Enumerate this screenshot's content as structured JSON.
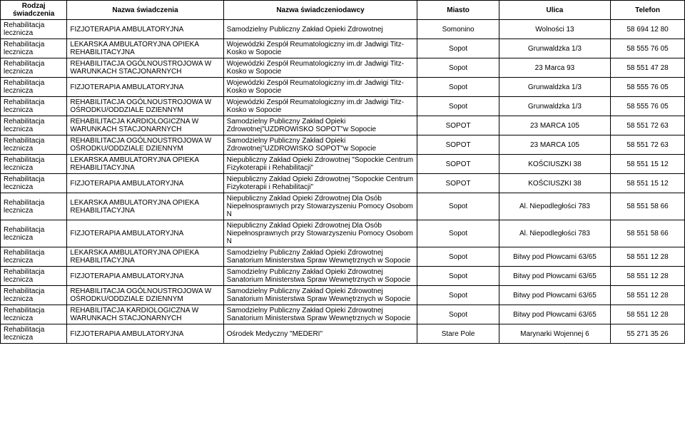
{
  "table": {
    "columns": [
      "Rodzaj świadczenia",
      "Nazwa świadczenia",
      "Nazwa świadczeniodawcy",
      "Miasto",
      "Ulica",
      "Telefon"
    ],
    "rows": [
      {
        "rodzaj": "Rehabilitacja lecznicza",
        "nazwa": "FIZJOTERAPIA AMBULATORYJNA",
        "dawca": "Samodzielny Publiczny Zakład Opieki Zdrowotnej",
        "miasto": "Somonino",
        "ulica": "Wolności 13",
        "tel": "58 694 12 80"
      },
      {
        "rodzaj": "Rehabilitacja lecznicza",
        "nazwa": "LEKARSKA AMBULATORYJNA OPIEKA REHABILITACYJNA",
        "dawca": "Wojewódzki Zespół Reumatologiczny im.dr Jadwigi Titz-Kosko w Sopocie",
        "miasto": "Sopot",
        "ulica": "Grunwaldzka 1/3",
        "tel": "58 555 76 05"
      },
      {
        "rodzaj": "Rehabilitacja lecznicza",
        "nazwa": "REHABILITACJA OGÓLNOUSTROJOWA W WARUNKACH STACJONARNYCH",
        "dawca": "Wojewódzki Zespół Reumatologiczny im.dr Jadwigi Titz-Kosko w Sopocie",
        "miasto": "Sopot",
        "ulica": "23 Marca 93",
        "tel": "58 551 47 28"
      },
      {
        "rodzaj": "Rehabilitacja lecznicza",
        "nazwa": "FIZJOTERAPIA AMBULATORYJNA",
        "dawca": "Wojewódzki Zespół Reumatologiczny im.dr Jadwigi Titz-Kosko w Sopocie",
        "miasto": "Sopot",
        "ulica": "Grunwaldzka 1/3",
        "tel": "58 555 76 05"
      },
      {
        "rodzaj": "Rehabilitacja lecznicza",
        "nazwa": "REHABILITACJA OGÓLNOUSTROJOWA W OŚRODKU/ODDZIALE DZIENNYM",
        "dawca": "Wojewódzki Zespół Reumatologiczny im.dr Jadwigi Titz-Kosko w Sopocie",
        "miasto": "Sopot",
        "ulica": "Grunwaldzka 1/3",
        "tel": "58 555 76 05"
      },
      {
        "rodzaj": "Rehabilitacja lecznicza",
        "nazwa": "REHABILITACJA KARDIOLOGICZNA W WARUNKACH STACJONARNYCH",
        "dawca": "Samodzielny Publiczny Zakład Opieki Zdrowotnej\"UZDROWISKO SOPOT\"w Sopocie",
        "miasto": "SOPOT",
        "ulica": "23 MARCA 105",
        "tel": "58 551 72 63"
      },
      {
        "rodzaj": "Rehabilitacja lecznicza",
        "nazwa": "REHABILITACJA OGÓLNOUSTROJOWA W OŚRODKU/ODDZIALE DZIENNYM",
        "dawca": "Samodzielny Publiczny Zakład Opieki Zdrowotnej\"UZDROWISKO SOPOT\"w Sopocie",
        "miasto": "SOPOT",
        "ulica": "23 MARCA 105",
        "tel": "58 551 72 63"
      },
      {
        "rodzaj": "Rehabilitacja lecznicza",
        "nazwa": "LEKARSKA AMBULATORYJNA OPIEKA REHABILITACYJNA",
        "dawca": "Niepubliczny Zakład Opieki Zdrowotnej \"Sopockie Centrum Fizykoterapii i Rehabilitacji\"",
        "miasto": "SOPOT",
        "ulica": "KOŚCIUSZKI 38",
        "tel": "58 551 15 12"
      },
      {
        "rodzaj": "Rehabilitacja lecznicza",
        "nazwa": "FIZJOTERAPIA AMBULATORYJNA",
        "dawca": "Niepubliczny Zakład Opieki Zdrowotnej \"Sopockie Centrum Fizykoterapii i Rehabilitacji\"",
        "miasto": "SOPOT",
        "ulica": "KOŚCIUSZKI 38",
        "tel": "58 551 15 12"
      },
      {
        "rodzaj": "Rehabilitacja lecznicza",
        "nazwa": "LEKARSKA AMBULATORYJNA OPIEKA REHABILITACYJNA",
        "dawca": "Niepubliczny Zakład Opieki Zdrowotnej Dla Osób Niepełnosprawnych przy Stowarzyszeniu Pomocy Osobom N",
        "miasto": "Sopot",
        "ulica": "Al. Niepodległości 783",
        "tel": "58 551 58 66"
      },
      {
        "rodzaj": "Rehabilitacja lecznicza",
        "nazwa": "FIZJOTERAPIA AMBULATORYJNA",
        "dawca": "Niepubliczny Zakład Opieki Zdrowotnej Dla Osób Niepełnosprawnych przy Stowarzyszeniu Pomocy Osobom N",
        "miasto": "Sopot",
        "ulica": "Al. Niepodległości 783",
        "tel": "58 551 58 66"
      },
      {
        "rodzaj": "Rehabilitacja lecznicza",
        "nazwa": "LEKARSKA AMBULATORYJNA OPIEKA REHABILITACYJNA",
        "dawca": "Samodzielny Publiczny Zakład Opieki Zdrowotnej Sanatorium Ministerstwa Spraw Wewnętrznych w Sopocie",
        "miasto": "Sopot",
        "ulica": "Bitwy pod Płowcami 63/65",
        "tel": "58 551 12 28"
      },
      {
        "rodzaj": "Rehabilitacja lecznicza",
        "nazwa": "FIZJOTERAPIA AMBULATORYJNA",
        "dawca": "Samodzielny Publiczny Zakład Opieki Zdrowotnej Sanatorium Ministerstwa Spraw Wewnętrznych w Sopocie",
        "miasto": "Sopot",
        "ulica": "Bitwy pod Płowcami 63/65",
        "tel": "58 551 12 28"
      },
      {
        "rodzaj": "Rehabilitacja lecznicza",
        "nazwa": "REHABILITACJA OGÓLNOUSTROJOWA W OŚRODKU/ODDZIALE DZIENNYM",
        "dawca": "Samodzielny Publiczny Zakład Opieki Zdrowotnej Sanatorium Ministerstwa Spraw Wewnętrznych w Sopocie",
        "miasto": "Sopot",
        "ulica": "Bitwy pod Płowcami 63/65",
        "tel": "58 551 12 28"
      },
      {
        "rodzaj": "Rehabilitacja lecznicza",
        "nazwa": "REHABILITACJA KARDIOLOGICZNA W WARUNKACH STACJONARNYCH",
        "dawca": "Samodzielny Publiczny Zakład Opieki Zdrowotnej Sanatorium Ministerstwa Spraw Wewnętrznych w Sopocie",
        "miasto": "Sopot",
        "ulica": "Bitwy pod Płowcami 63/65",
        "tel": "58 551 12 28"
      },
      {
        "rodzaj": "Rehabilitacja lecznicza",
        "nazwa": "FIZJOTERAPIA AMBULATORYJNA",
        "dawca": "Ośrodek Medyczny \"MEDERI\"",
        "miasto": "Stare Pole",
        "ulica": "Marynarki Wojennej 6",
        "tel": "55 271 35 26"
      }
    ]
  }
}
